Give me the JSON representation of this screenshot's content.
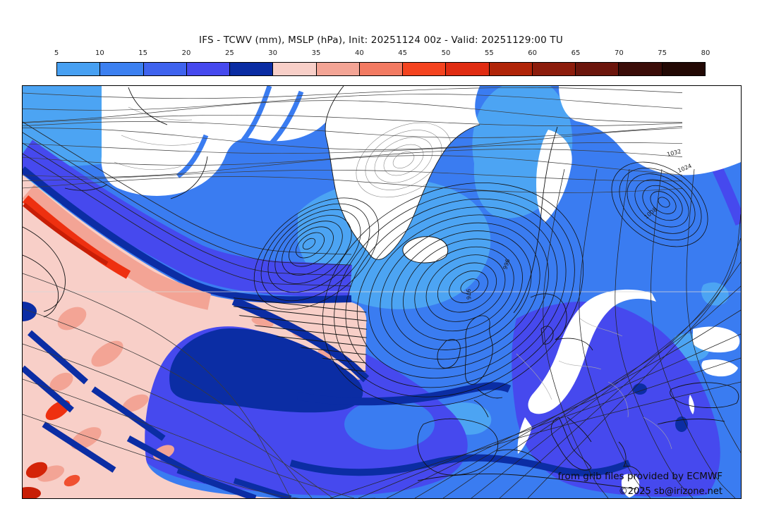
{
  "header": {
    "title": "IFS - TCWV (mm), MSLP (hPa), Init: 20251124 00z - Valid: 20251129:00 TU"
  },
  "colorbar": {
    "ticks": [
      "5",
      "10",
      "15",
      "20",
      "25",
      "30",
      "35",
      "40",
      "45",
      "50",
      "55",
      "60",
      "65",
      "70",
      "75",
      "80"
    ],
    "segment_colors": [
      "#47a0f2",
      "#3c80f0",
      "#3f63ee",
      "#4649ee",
      "#0a2ca3",
      "#f8cfc8",
      "#f3a495",
      "#f27a62",
      "#f4431f",
      "#e02c12",
      "#b02408",
      "#8c1c0c",
      "#6b150c",
      "#3a0c08",
      "#220804"
    ]
  },
  "map": {
    "isobar_labels": [
      "976",
      "996",
      "1008",
      "1024",
      "1032"
    ],
    "attribution": {
      "line1": "from grib files provided by ECMWF",
      "line2": "©2025 sb@irizone.net"
    },
    "colors": {
      "dry_white": "#ffffff",
      "sea_royal_blue": "#3a7cf1",
      "light_sky_blue": "#4ca4f3",
      "blue_violet": "#4649ee",
      "navy": "#0b2da4",
      "pale_pink": "#f8cfc8",
      "salmon": "#f3a495",
      "red_core": "#ee3010",
      "isobar_line": "#1a1a1a",
      "coast_line": "#141414",
      "terrain_contour": "#888888"
    }
  }
}
